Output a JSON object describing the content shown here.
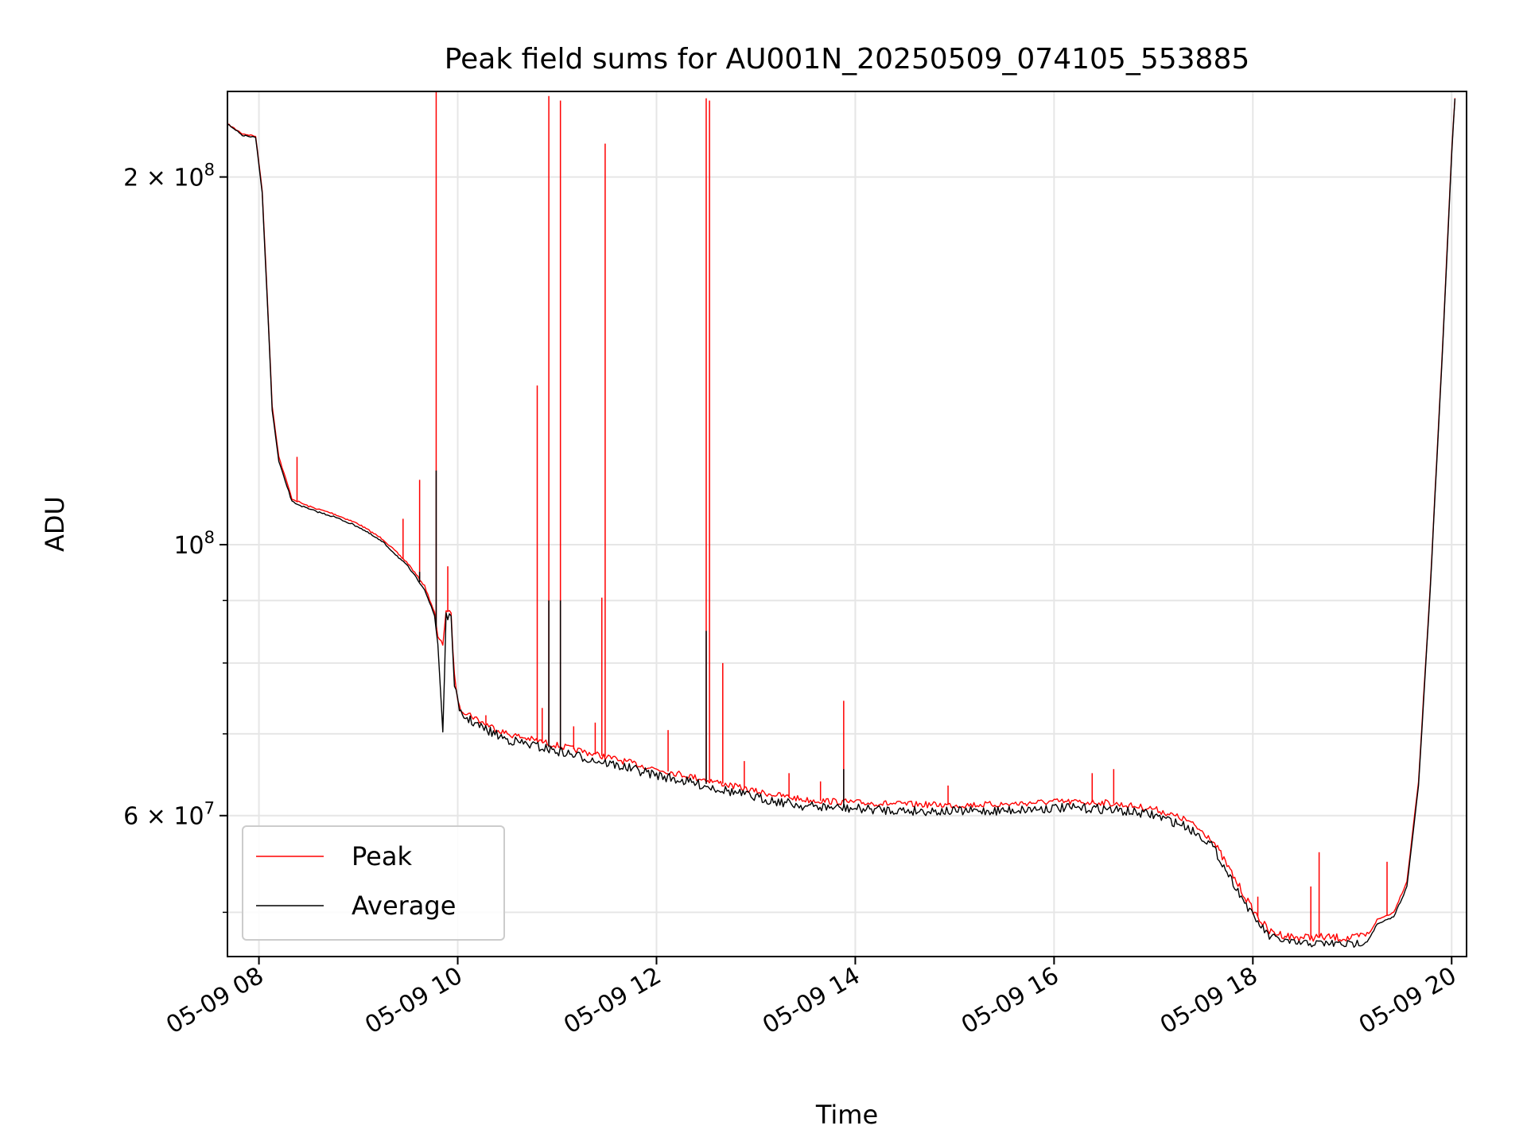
{
  "chart_data": {
    "type": "line",
    "title": "Peak field sums for AU001N_20250509_074105_553885",
    "xlabel": "Time",
    "ylabel": "ADU",
    "y_scale": "log",
    "ylim": [
      46000000,
      235000000
    ],
    "xlim": [
      "05-09 07:41",
      "05-09 20:09"
    ],
    "grid": true,
    "legend_placement": "lower-left",
    "x_ticks": [
      {
        "x": "05-09 08:00",
        "label": "05-09 08"
      },
      {
        "x": "05-09 10:00",
        "label": "05-09 10"
      },
      {
        "x": "05-09 12:00",
        "label": "05-09 12"
      },
      {
        "x": "05-09 14:00",
        "label": "05-09 14"
      },
      {
        "x": "05-09 16:00",
        "label": "05-09 16"
      },
      {
        "x": "05-09 18:00",
        "label": "05-09 18"
      },
      {
        "x": "05-09 20:00",
        "label": "05-09 20"
      }
    ],
    "y_ticks_major": [
      {
        "value": 200000000,
        "base": "2 × 10",
        "exp": "8"
      },
      {
        "value": 100000000,
        "base": "10",
        "exp": "8"
      },
      {
        "value": 60000000,
        "base": "6 × 10",
        "exp": "7"
      }
    ],
    "y_ticks_minor": [
      50000000,
      70000000,
      80000000,
      90000000
    ],
    "series": [
      {
        "name": "Peak",
        "color": "#ff0000",
        "base_points": [
          [
            "05-09 07:41",
            221000000
          ],
          [
            "05-09 07:50",
            217000000
          ],
          [
            "05-09 07:58",
            216000000
          ],
          [
            "05-09 08:02",
            195000000
          ],
          [
            "05-09 08:05",
            160000000
          ],
          [
            "05-09 08:08",
            130000000
          ],
          [
            "05-09 08:12",
            118000000
          ],
          [
            "05-09 08:20",
            109000000
          ],
          [
            "05-09 08:30",
            107500000
          ],
          [
            "05-09 08:45",
            106000000
          ],
          [
            "05-09 09:00",
            104000000
          ],
          [
            "05-09 09:15",
            101000000
          ],
          [
            "05-09 09:30",
            96500000
          ],
          [
            "05-09 09:40",
            92500000
          ],
          [
            "05-09 09:46",
            88000000
          ],
          [
            "05-09 09:48",
            84000000
          ],
          [
            "05-09 09:51",
            83000000
          ],
          [
            "05-09 09:53",
            88500000
          ],
          [
            "05-09 09:56",
            87500000
          ],
          [
            "05-09 09:58",
            78000000
          ],
          [
            "05-09 10:01",
            73500000
          ],
          [
            "05-09 10:15",
            71500000
          ],
          [
            "05-09 10:30",
            70000000
          ],
          [
            "05-09 11:00",
            68500000
          ],
          [
            "05-09 11:30",
            67000000
          ],
          [
            "05-09 12:00",
            65500000
          ],
          [
            "05-09 12:30",
            64200000
          ],
          [
            "05-09 13:00",
            62800000
          ],
          [
            "05-09 13:30",
            61800000
          ],
          [
            "05-09 14:00",
            61500000
          ],
          [
            "05-09 14:30",
            61300000
          ],
          [
            "05-09 15:00",
            61200000
          ],
          [
            "05-09 15:30",
            61300000
          ],
          [
            "05-09 16:00",
            61600000
          ],
          [
            "05-09 16:30",
            61500000
          ],
          [
            "05-09 17:00",
            60800000
          ],
          [
            "05-09 17:20",
            59500000
          ],
          [
            "05-09 17:35",
            57500000
          ],
          [
            "05-09 17:50",
            53000000
          ],
          [
            "05-09 18:00",
            50200000
          ],
          [
            "05-09 18:10",
            48200000
          ],
          [
            "05-09 18:25",
            47700000
          ],
          [
            "05-09 18:45",
            47700000
          ],
          [
            "05-09 19:00",
            47600000
          ],
          [
            "05-09 19:10",
            48000000
          ],
          [
            "05-09 19:15",
            49300000
          ],
          [
            "05-09 19:25",
            50000000
          ],
          [
            "05-09 19:33",
            53000000
          ],
          [
            "05-09 19:40",
            64000000
          ],
          [
            "05-09 19:47",
            92000000
          ],
          [
            "05-09 19:55",
            150000000
          ],
          [
            "05-09 20:00",
            210000000
          ],
          [
            "05-09 20:02",
            232000000
          ]
        ],
        "spikes": [
          [
            "05-09 08:23",
            118000000
          ],
          [
            "05-09 09:27",
            105000000
          ],
          [
            "05-09 09:37",
            113000000
          ],
          [
            "05-09 09:47",
            238000000
          ],
          [
            "05-09 09:54",
            96000000
          ],
          [
            "05-09 10:17",
            72500000
          ],
          [
            "05-09 10:48",
            135000000
          ],
          [
            "05-09 10:51",
            73500000
          ],
          [
            "05-09 10:55",
            233000000
          ],
          [
            "05-09 11:02",
            231000000
          ],
          [
            "05-09 11:10",
            71000000
          ],
          [
            "05-09 11:23",
            71500000
          ],
          [
            "05-09 11:27",
            90500000
          ],
          [
            "05-09 11:29",
            213000000
          ],
          [
            "05-09 12:07",
            70500000
          ],
          [
            "05-09 12:30",
            232000000
          ],
          [
            "05-09 12:32",
            231000000
          ],
          [
            "05-09 12:40",
            80000000
          ],
          [
            "05-09 12:53",
            66500000
          ],
          [
            "05-09 13:20",
            65000000
          ],
          [
            "05-09 13:39",
            64000000
          ],
          [
            "05-09 13:53",
            74500000
          ],
          [
            "05-09 14:56",
            63500000
          ],
          [
            "05-09 16:23",
            65000000
          ],
          [
            "05-09 16:36",
            65500000
          ],
          [
            "05-09 18:03",
            51500000
          ],
          [
            "05-09 18:35",
            52500000
          ],
          [
            "05-09 18:40",
            56000000
          ],
          [
            "05-09 19:21",
            55000000
          ]
        ]
      },
      {
        "name": "Average",
        "color": "#000000",
        "base_points": [
          [
            "05-09 07:41",
            221000000
          ],
          [
            "05-09 07:50",
            216500000
          ],
          [
            "05-09 07:58",
            215500000
          ],
          [
            "05-09 08:02",
            194000000
          ],
          [
            "05-09 08:05",
            159000000
          ],
          [
            "05-09 08:08",
            129000000
          ],
          [
            "05-09 08:12",
            117000000
          ],
          [
            "05-09 08:20",
            108500000
          ],
          [
            "05-09 08:30",
            107000000
          ],
          [
            "05-09 08:45",
            105500000
          ],
          [
            "05-09 09:00",
            103500000
          ],
          [
            "05-09 09:15",
            100500000
          ],
          [
            "05-09 09:30",
            96000000
          ],
          [
            "05-09 09:40",
            92000000
          ],
          [
            "05-09 09:46",
            87500000
          ],
          [
            "05-09 09:48",
            83000000
          ],
          [
            "05-09 09:51",
            70500000
          ],
          [
            "05-09 09:53",
            88000000
          ],
          [
            "05-09 09:56",
            87000000
          ],
          [
            "05-09 09:58",
            77500000
          ],
          [
            "05-09 10:01",
            73000000
          ],
          [
            "05-09 10:15",
            71000000
          ],
          [
            "05-09 10:30",
            69500000
          ],
          [
            "05-09 11:00",
            68000000
          ],
          [
            "05-09 11:30",
            66500000
          ],
          [
            "05-09 12:00",
            65000000
          ],
          [
            "05-09 12:30",
            63700000
          ],
          [
            "05-09 13:00",
            62300000
          ],
          [
            "05-09 13:30",
            61300000
          ],
          [
            "05-09 14:00",
            61000000
          ],
          [
            "05-09 14:30",
            60800000
          ],
          [
            "05-09 15:00",
            60700000
          ],
          [
            "05-09 15:30",
            60800000
          ],
          [
            "05-09 16:00",
            61100000
          ],
          [
            "05-09 16:30",
            61000000
          ],
          [
            "05-09 17:00",
            60300000
          ],
          [
            "05-09 17:20",
            59000000
          ],
          [
            "05-09 17:35",
            57000000
          ],
          [
            "05-09 17:50",
            52500000
          ],
          [
            "05-09 18:00",
            49800000
          ],
          [
            "05-09 18:10",
            47900000
          ],
          [
            "05-09 18:25",
            47300000
          ],
          [
            "05-09 18:45",
            47300000
          ],
          [
            "05-09 19:00",
            47200000
          ],
          [
            "05-09 19:10",
            47600000
          ],
          [
            "05-09 19:15",
            48900000
          ],
          [
            "05-09 19:25",
            49600000
          ],
          [
            "05-09 19:33",
            52500000
          ],
          [
            "05-09 19:40",
            63500000
          ],
          [
            "05-09 19:47",
            91500000
          ],
          [
            "05-09 19:55",
            149000000
          ],
          [
            "05-09 20:00",
            209000000
          ],
          [
            "05-09 20:02",
            232000000
          ]
        ],
        "spikes": [
          [
            "05-09 09:37",
            95000000
          ],
          [
            "05-09 09:47",
            115000000
          ],
          [
            "05-09 10:55",
            90000000
          ],
          [
            "05-09 11:02",
            90000000
          ],
          [
            "05-09 12:30",
            85000000
          ],
          [
            "05-09 13:53",
            65500000
          ]
        ]
      }
    ]
  }
}
